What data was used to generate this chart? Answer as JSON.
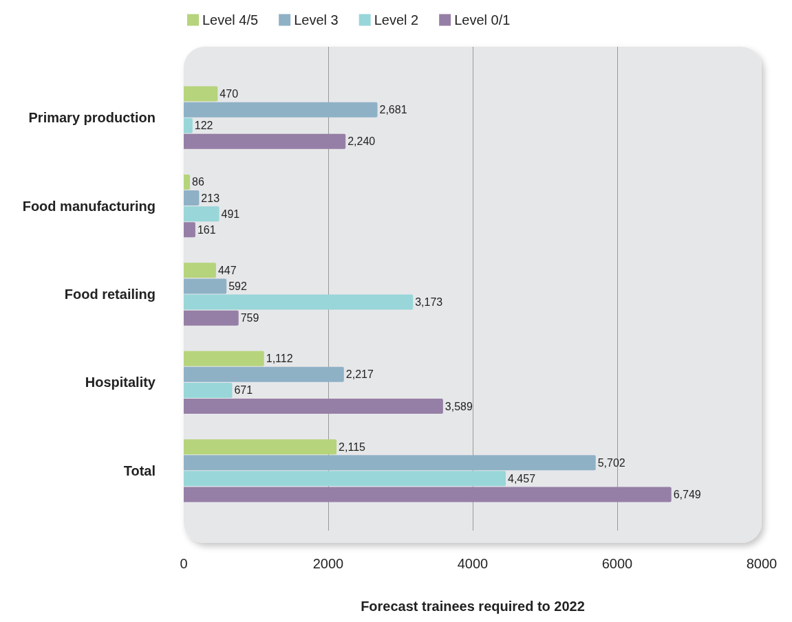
{
  "chart_data": {
    "type": "bar",
    "orientation": "horizontal",
    "xlabel": "Forecast trainees required to 2022",
    "categories": [
      "Primary production",
      "Food manufacturing",
      "Food retailing",
      "Hospitality",
      "Total"
    ],
    "series": [
      {
        "name": "Level 4/5",
        "color": "#b6d47c",
        "values": [
          470,
          86,
          447,
          1112,
          2115
        ],
        "value_labels": [
          "470",
          "86",
          "447",
          "1,112",
          "2,115"
        ]
      },
      {
        "name": "Level 3",
        "color": "#8eb1c6",
        "values": [
          2681,
          213,
          592,
          2217,
          5702
        ],
        "value_labels": [
          "2,681",
          "213",
          "592",
          "2,217",
          "5,702"
        ]
      },
      {
        "name": "Level 2",
        "color": "#98d6d9",
        "values": [
          122,
          491,
          3173,
          671,
          4457
        ],
        "value_labels": [
          "122",
          "491",
          "3,173",
          "671",
          "4,457"
        ]
      },
      {
        "name": "Level 0/1",
        "color": "#967fa6",
        "values": [
          2240,
          161,
          759,
          3589,
          6749
        ],
        "value_labels": [
          "2,240",
          "161",
          "759",
          "3,589",
          "6,749"
        ]
      }
    ],
    "xlim": [
      0,
      8000
    ],
    "xticks": [
      0,
      2000,
      4000,
      6000,
      8000
    ],
    "grid": "x",
    "legend": "top left"
  }
}
